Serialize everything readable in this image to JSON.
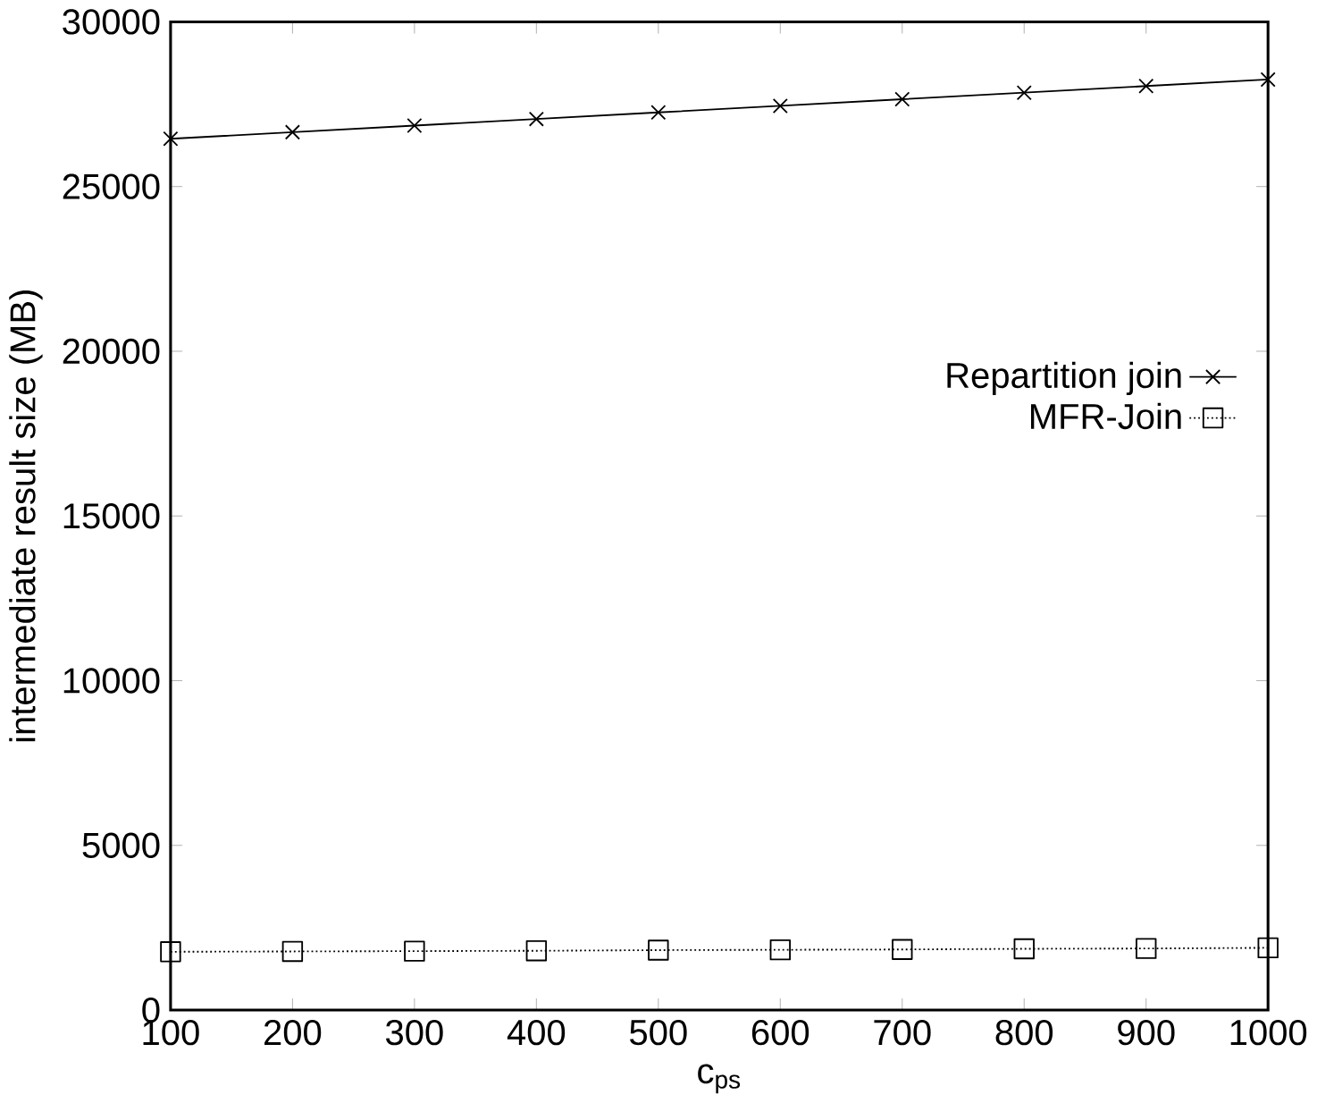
{
  "chart_data": {
    "type": "line",
    "xlabel": "c$_{ps}$",
    "ylabel": "intermediate result size (MB)",
    "x": [
      100,
      200,
      300,
      400,
      500,
      600,
      700,
      800,
      900,
      1000
    ],
    "series": [
      {
        "name": "Repartition join",
        "color": "#000000",
        "marker": "cross",
        "line_style": "solid",
        "values": [
          26450,
          26650,
          26850,
          27050,
          27250,
          27450,
          27650,
          27850,
          28050,
          28250
        ]
      },
      {
        "name": "MFR-Join",
        "color": "#000000",
        "marker": "square",
        "line_style": "dotted",
        "values": [
          1770,
          1780,
          1790,
          1800,
          1820,
          1830,
          1840,
          1860,
          1870,
          1890
        ]
      }
    ],
    "xlim": [
      100,
      1000
    ],
    "xticks": [
      100,
      200,
      300,
      400,
      500,
      600,
      700,
      800,
      900,
      1000
    ],
    "ylim": [
      0,
      30000
    ],
    "yticks": [
      0,
      5000,
      10000,
      15000,
      20000,
      25000,
      30000
    ],
    "grid": false,
    "legend": "right"
  }
}
